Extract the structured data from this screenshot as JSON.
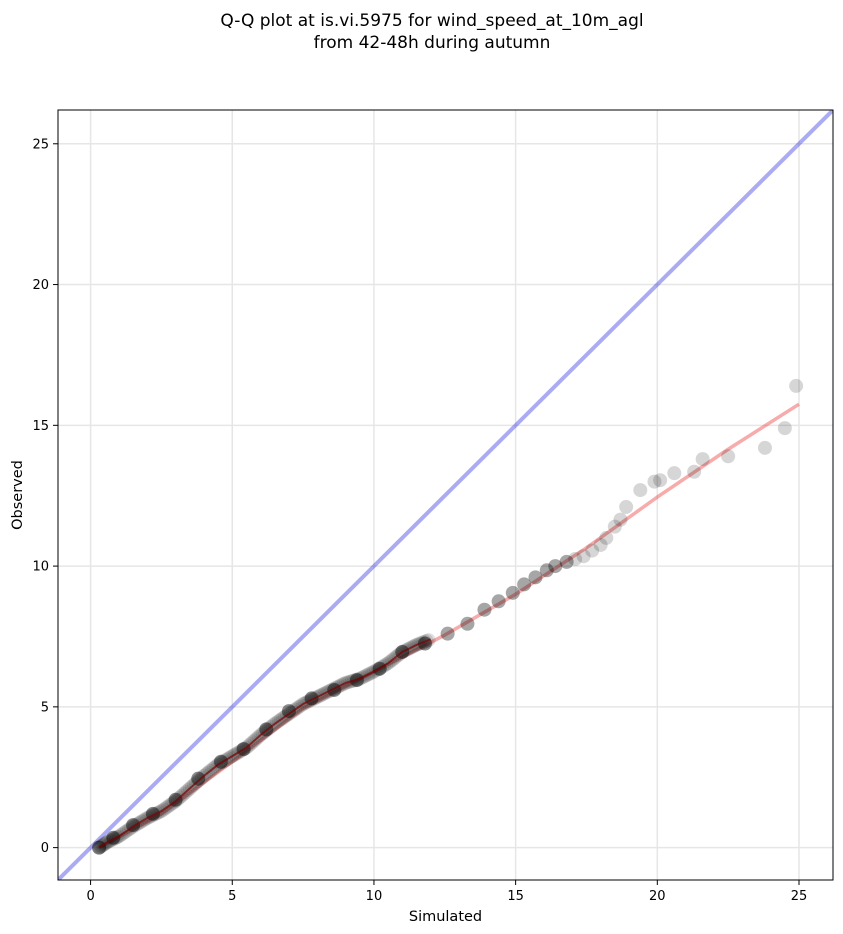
{
  "chart_data": {
    "type": "scatter",
    "title": [
      "Q-Q plot at is.vi.5975 for wind_speed_at_10m_agl",
      "from 42-48h during autumn"
    ],
    "xlabel": "Simulated",
    "ylabel": "Observed",
    "xlim": [
      -1.15,
      26.2
    ],
    "ylim": [
      -1.15,
      26.2
    ],
    "xticks": [
      0,
      5,
      10,
      15,
      20,
      25
    ],
    "yticks": [
      0,
      5,
      10,
      15,
      20,
      25
    ],
    "grid": true,
    "reference_line": {
      "kind": "identity",
      "color": "#0000dd"
    },
    "fit_line": {
      "color": "#ee4444",
      "points": [
        [
          0.3,
          0.0
        ],
        [
          2.5,
          1.2
        ],
        [
          5.0,
          3.05
        ],
        [
          7.5,
          4.95
        ],
        [
          10.0,
          6.25
        ],
        [
          12.5,
          7.55
        ],
        [
          15.0,
          9.0
        ],
        [
          17.5,
          10.65
        ],
        [
          20.0,
          12.45
        ],
        [
          22.5,
          14.15
        ],
        [
          25.0,
          15.75
        ]
      ]
    },
    "quantile_curve": {
      "color": "#7a0000",
      "points": [
        [
          0.3,
          0.0
        ],
        [
          0.6,
          0.2
        ],
        [
          1.0,
          0.4
        ],
        [
          1.5,
          0.75
        ],
        [
          2.0,
          1.05
        ],
        [
          2.5,
          1.3
        ],
        [
          3.0,
          1.65
        ],
        [
          3.5,
          2.1
        ],
        [
          4.0,
          2.55
        ],
        [
          4.5,
          2.95
        ],
        [
          5.0,
          3.25
        ],
        [
          5.5,
          3.55
        ],
        [
          6.0,
          4.0
        ],
        [
          6.5,
          4.4
        ],
        [
          7.0,
          4.75
        ],
        [
          7.5,
          5.1
        ],
        [
          8.0,
          5.35
        ],
        [
          8.5,
          5.6
        ],
        [
          9.0,
          5.85
        ],
        [
          9.5,
          6.0
        ],
        [
          10.0,
          6.25
        ],
        [
          10.5,
          6.55
        ],
        [
          11.0,
          6.95
        ],
        [
          11.5,
          7.2
        ],
        [
          12.0,
          7.4
        ]
      ]
    },
    "series": [
      {
        "color": "#000000",
        "x": [
          0.3,
          0.8,
          1.5,
          2.2,
          3.0,
          3.8,
          4.6,
          5.4,
          6.2,
          7.0,
          7.8,
          8.6,
          9.4,
          10.2,
          11.0,
          11.8,
          12.6,
          13.3,
          13.9,
          14.4,
          14.9,
          15.3,
          15.7,
          16.1,
          16.4,
          16.8,
          17.1,
          17.4,
          17.7,
          18.0,
          18.2,
          18.5,
          18.7,
          18.9,
          19.4,
          19.9,
          20.1,
          20.6,
          21.3,
          21.6,
          22.5,
          23.8,
          24.5,
          24.9
        ],
        "y": [
          0.0,
          0.35,
          0.8,
          1.2,
          1.7,
          2.45,
          3.05,
          3.5,
          4.2,
          4.85,
          5.3,
          5.6,
          5.95,
          6.35,
          6.95,
          7.25,
          7.6,
          7.95,
          8.45,
          8.75,
          9.05,
          9.35,
          9.6,
          9.85,
          10.0,
          10.15,
          10.25,
          10.35,
          10.55,
          10.75,
          11.0,
          11.4,
          11.65,
          12.1,
          12.7,
          13.0,
          13.05,
          13.3,
          13.35,
          13.8,
          13.9,
          14.2,
          14.9,
          16.4
        ]
      }
    ]
  }
}
